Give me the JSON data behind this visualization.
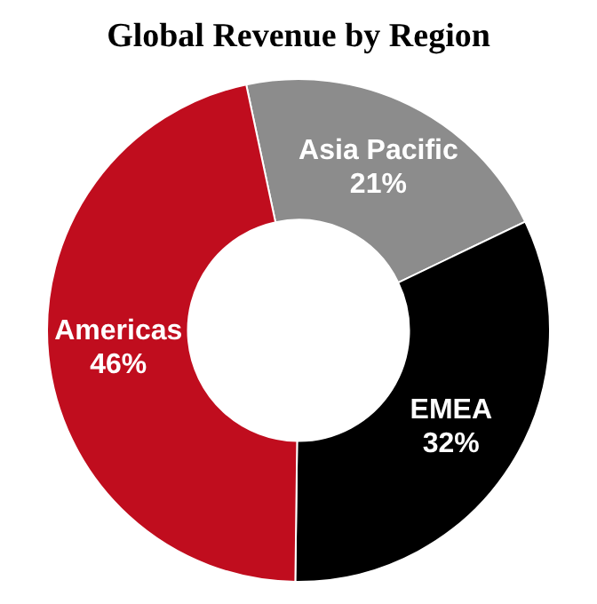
{
  "chart_data": {
    "type": "donut",
    "title": "Global Revenue by Region",
    "categories": [
      "Asia Pacific",
      "EMEA",
      "Americas"
    ],
    "values": [
      21,
      32,
      46
    ],
    "colors": [
      "#8c8c8c",
      "#000000",
      "#c00d1e"
    ],
    "value_labels": [
      "21%",
      "32%",
      "46%"
    ],
    "legend": false
  }
}
